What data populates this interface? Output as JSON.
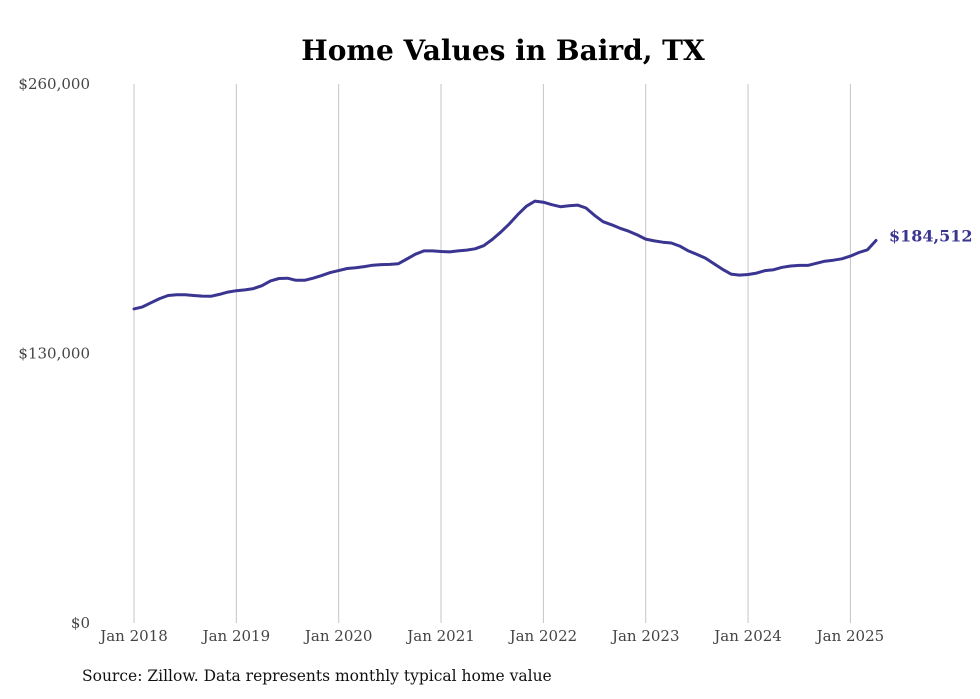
{
  "chart_data": {
    "type": "line",
    "title": "Home Values in Baird, TX",
    "xlabel": "",
    "ylabel": "",
    "ylim": [
      0,
      260000
    ],
    "yticks": [
      0,
      130000,
      260000
    ],
    "ytick_labels": [
      "$0",
      "$130,000",
      "$260,000"
    ],
    "xlim": [
      "2018-01",
      "2025-04"
    ],
    "xticks": [
      "2018-01",
      "2019-01",
      "2020-01",
      "2021-01",
      "2022-01",
      "2023-01",
      "2024-01",
      "2025-01"
    ],
    "xtick_labels": [
      "Jan 2018",
      "Jan 2019",
      "Jan 2020",
      "Jan 2021",
      "Jan 2022",
      "Jan 2023",
      "Jan 2024",
      "Jan 2025"
    ],
    "grid": {
      "vertical": true,
      "horizontal": false
    },
    "line_color": "#3b3592",
    "end_label": "$184,512",
    "series": [
      {
        "x": [
          "2018-01",
          "2018-02",
          "2018-03",
          "2018-04",
          "2018-05",
          "2018-06",
          "2018-07",
          "2018-08",
          "2018-09",
          "2018-10",
          "2018-11",
          "2018-12",
          "2019-01",
          "2019-02",
          "2019-03",
          "2019-04",
          "2019-05",
          "2019-06",
          "2019-07",
          "2019-08",
          "2019-09",
          "2019-10",
          "2019-11",
          "2019-12",
          "2020-01",
          "2020-02",
          "2020-03",
          "2020-04",
          "2020-05",
          "2020-06",
          "2020-07",
          "2020-08",
          "2020-09",
          "2020-10",
          "2020-11",
          "2020-12",
          "2021-01",
          "2021-02",
          "2021-03",
          "2021-04",
          "2021-05",
          "2021-06",
          "2021-07",
          "2021-08",
          "2021-09",
          "2021-10",
          "2021-11",
          "2021-12",
          "2022-01",
          "2022-02",
          "2022-03",
          "2022-04",
          "2022-05",
          "2022-06",
          "2022-07",
          "2022-08",
          "2022-09",
          "2022-10",
          "2022-11",
          "2022-12",
          "2023-01",
          "2023-02",
          "2023-03",
          "2023-04",
          "2023-05",
          "2023-06",
          "2023-07",
          "2023-08",
          "2023-09",
          "2023-10",
          "2023-11",
          "2023-12",
          "2024-01",
          "2024-02",
          "2024-03",
          "2024-04",
          "2024-05",
          "2024-06",
          "2024-07",
          "2024-08",
          "2024-09",
          "2024-10",
          "2024-11",
          "2024-12",
          "2025-01",
          "2025-02",
          "2025-03",
          "2025-04"
        ],
        "values": [
          151500,
          152500,
          154500,
          156500,
          158000,
          158300,
          158300,
          158000,
          157700,
          157600,
          158500,
          159600,
          160300,
          160700,
          161300,
          162700,
          165000,
          166200,
          166300,
          165300,
          165300,
          166300,
          167600,
          169000,
          170000,
          171000,
          171400,
          171900,
          172600,
          172900,
          173000,
          173300,
          175600,
          177900,
          179500,
          179500,
          179200,
          179000,
          179500,
          179900,
          180500,
          182000,
          185000,
          188500,
          192500,
          197000,
          201000,
          203500,
          203000,
          201800,
          200800,
          201300,
          201600,
          200200,
          196600,
          193600,
          192100,
          190400,
          189000,
          187200,
          185200,
          184300,
          183700,
          183300,
          181800,
          179500,
          177800,
          176000,
          173300,
          170600,
          168300,
          167800,
          168100,
          168800,
          170000,
          170400,
          171600,
          172200,
          172500,
          172500,
          173500,
          174500,
          175000,
          175700,
          177000,
          178700,
          180000,
          184512
        ]
      }
    ]
  },
  "source_text": "Source: Zillow. Data represents monthly typical home value"
}
